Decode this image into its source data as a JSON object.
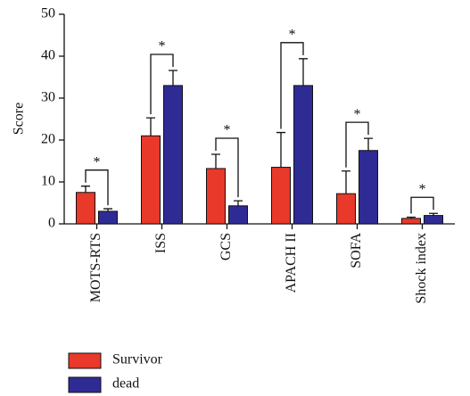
{
  "chart_data": {
    "type": "bar",
    "y_label": "Score",
    "categories": [
      "MOTS-RTS",
      "ISS",
      "GCS",
      "APACH II",
      "SOFA",
      "Shock index"
    ],
    "series": [
      {
        "name": "Survivor",
        "color": "#e8392a",
        "values": [
          7.5,
          21,
          13.2,
          13.5,
          7.2,
          1.3
        ],
        "errors": [
          1.5,
          4.3,
          3.4,
          8.3,
          5.4,
          0.3
        ]
      },
      {
        "name": "dead",
        "color": "#2f2b95",
        "values": [
          3.0,
          33,
          4.3,
          33,
          17.5,
          2.0
        ],
        "errors": [
          0.6,
          3.6,
          1.2,
          6.4,
          2.9,
          0.5
        ]
      }
    ],
    "significance": [
      "*",
      "*",
      "*",
      "*",
      "*",
      "*"
    ],
    "ylim": [
      0,
      50
    ],
    "yticks": [
      0,
      10,
      20,
      30,
      40,
      50
    ]
  }
}
